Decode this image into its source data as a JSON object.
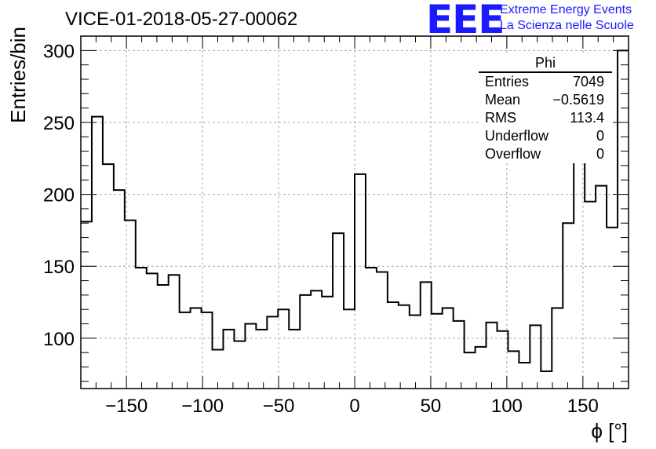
{
  "title": "VICE-01-2018-05-27-00062",
  "logo": {
    "mark": "EEE",
    "line1": "Extreme Energy Events",
    "line2": "La Scienza nelle Scuole",
    "color": "#1a1aff"
  },
  "stats_box": {
    "name": "Phi",
    "rows": [
      {
        "label": "Entries",
        "value": "7049"
      },
      {
        "label": "Mean",
        "value": "−0.5619"
      },
      {
        "label": "RMS",
        "value": "113.4"
      },
      {
        "label": "Underflow",
        "value": "0"
      },
      {
        "label": "Overflow",
        "value": "0"
      }
    ]
  },
  "chart_data": {
    "type": "bar",
    "style": "step-histogram",
    "title": "VICE-01-2018-05-27-00062",
    "xlabel": "ϕ [°]",
    "ylabel": "Entries/bin",
    "xlim": [
      -180,
      180
    ],
    "ylim": [
      65,
      310
    ],
    "bin_width": 7.2,
    "xticks": [
      -150,
      -100,
      -50,
      0,
      50,
      100,
      150
    ],
    "xtick_labels": [
      "−150",
      "−100",
      "−50",
      "0",
      "50",
      "100",
      "150"
    ],
    "yticks": [
      100,
      150,
      200,
      250,
      300
    ],
    "ytick_labels": [
      "100",
      "150",
      "200",
      "250",
      "300"
    ],
    "grid": true,
    "legend": "none",
    "values": [
      181,
      254,
      221,
      203,
      182,
      149,
      145,
      137,
      144,
      118,
      121,
      118,
      92,
      106,
      98,
      110,
      106,
      115,
      120,
      106,
      130,
      133,
      129,
      173,
      120,
      214,
      149,
      146,
      125,
      123,
      116,
      139,
      117,
      121,
      112,
      90,
      94,
      111,
      105,
      91,
      83,
      109,
      77,
      121,
      180,
      236,
      195,
      206,
      177,
      300
    ]
  }
}
